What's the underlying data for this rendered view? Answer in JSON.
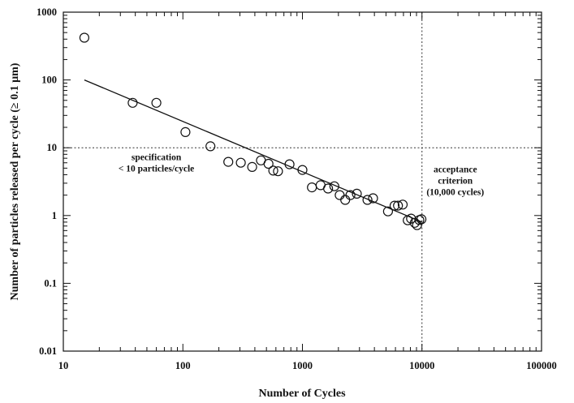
{
  "chart_data": {
    "type": "scatter",
    "xlabel": "Number of Cycles",
    "ylabel": "Number of particles released per cycle (≥ 0.1 µm)",
    "xscale": "log",
    "yscale": "log",
    "xlim": [
      10,
      100000
    ],
    "ylim": [
      0.01,
      1000
    ],
    "xticks": [
      10,
      100,
      1000,
      10000,
      100000
    ],
    "xtick_labels": [
      "10",
      "100",
      "1000",
      "10000",
      "100000"
    ],
    "yticks": [
      0.01,
      0.1,
      1,
      10,
      100,
      1000
    ],
    "ytick_labels": [
      "0.01",
      "0.1",
      "1",
      "10",
      "100",
      "1000"
    ],
    "grid": false,
    "series": [
      {
        "type": "scatter",
        "marker": "open-circle",
        "x": [
          15,
          38,
          60,
          105,
          170,
          240,
          305,
          380,
          450,
          520,
          570,
          625,
          780,
          1000,
          1200,
          1420,
          1640,
          1850,
          2050,
          2280,
          2520,
          2850,
          3500,
          3900,
          5200,
          5900,
          6300,
          6900,
          7600,
          8100,
          8700,
          9100,
          9500,
          9900
        ],
        "y": [
          420,
          46,
          46,
          17,
          10.5,
          6.2,
          6,
          5.2,
          6.5,
          5.8,
          4.6,
          4.5,
          5.7,
          4.7,
          2.6,
          2.8,
          2.5,
          2.7,
          2,
          1.7,
          2,
          2.1,
          1.7,
          1.8,
          1.15,
          1.4,
          1.4,
          1.45,
          0.85,
          0.9,
          0.78,
          0.72,
          0.86,
          0.88
        ]
      },
      {
        "type": "line",
        "style": "solid",
        "x": [
          15,
          10000
        ],
        "y": [
          100,
          0.8
        ]
      }
    ],
    "reference_lines": [
      {
        "orientation": "horizontal",
        "value": 10,
        "style": "dotted"
      },
      {
        "orientation": "vertical",
        "value": 10000,
        "style": "dotted"
      }
    ],
    "annotations": [
      {
        "lines": [
          "specification",
          "< 10 particles/cycle"
        ],
        "anchor": {
          "x": 60,
          "y": 6
        }
      },
      {
        "lines": [
          "acceptance",
          "criterion",
          "(10,000 cycles)"
        ],
        "anchor": {
          "x": 19000,
          "y": 3.3
        }
      }
    ]
  }
}
